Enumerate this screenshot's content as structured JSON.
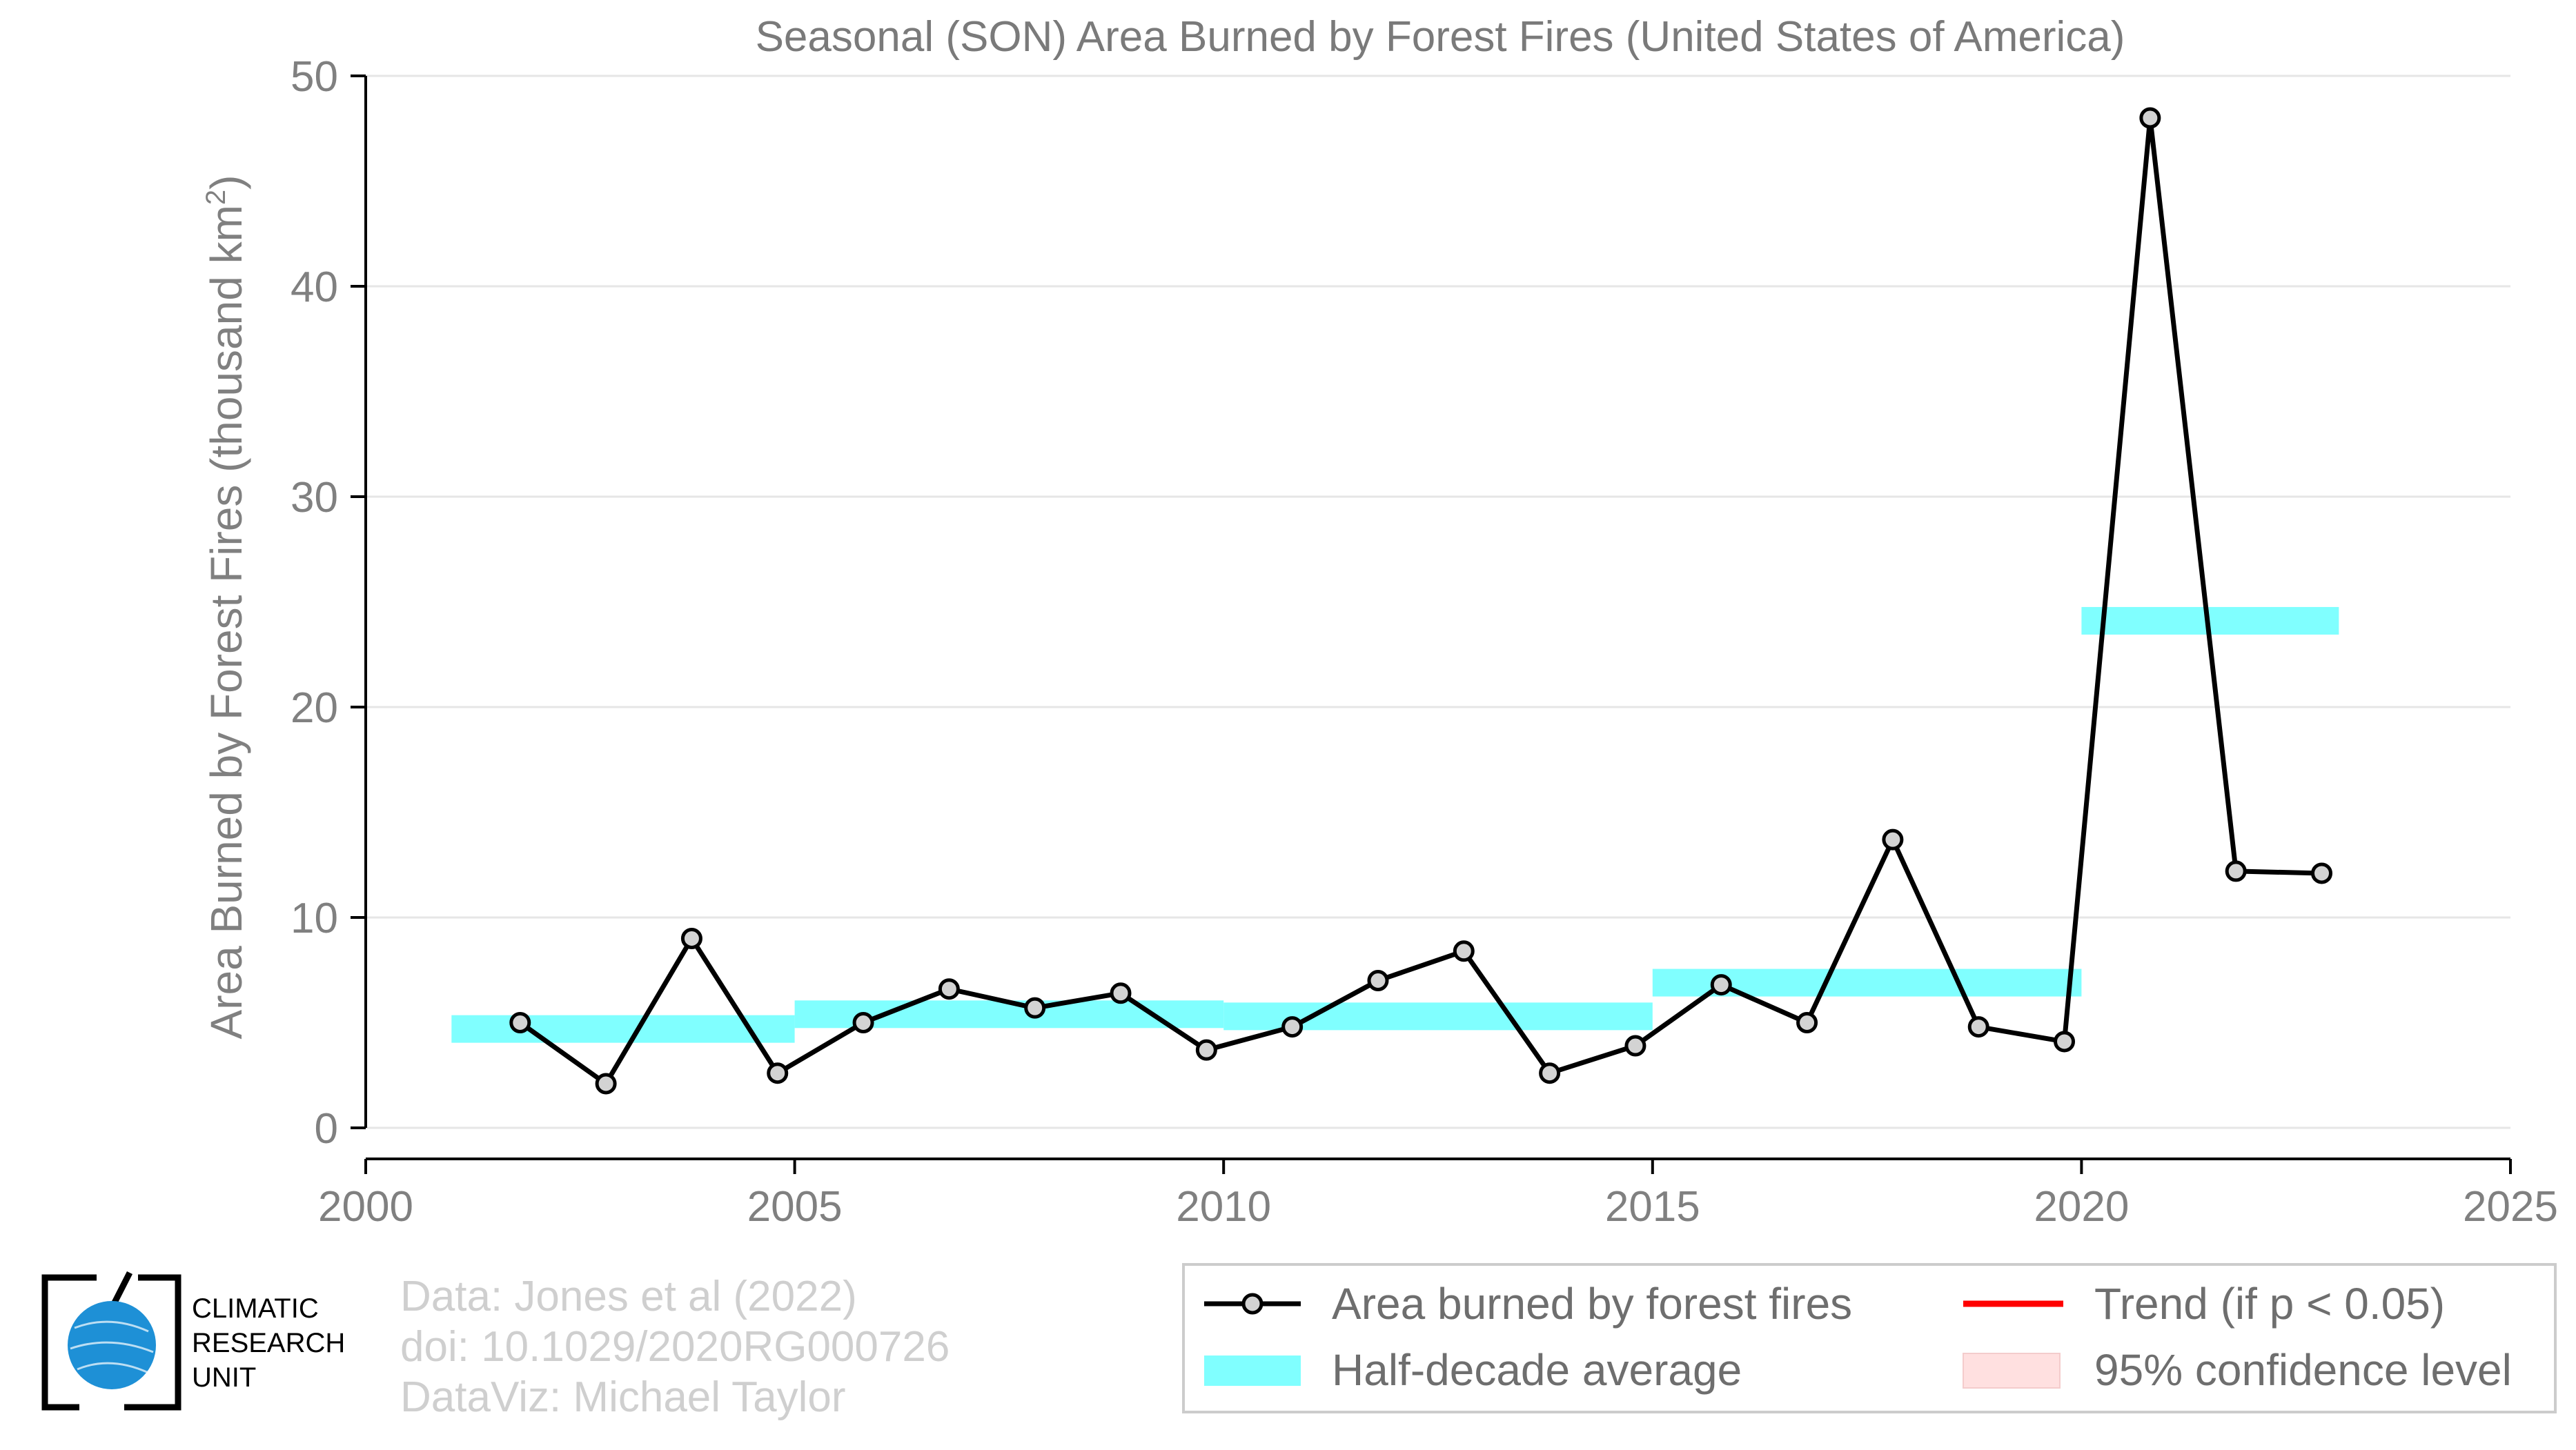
{
  "chart_data": {
    "type": "line",
    "title": "Seasonal (SON) Area Burned by Forest Fires (United States of America)",
    "ylabel": "Area Burned by Forest Fires (thousand km",
    "ylabel_superscript": "2",
    "ylabel_close": ")",
    "xlabel": "",
    "xlim": [
      2000,
      2025
    ],
    "ylim": [
      0,
      50
    ],
    "xticks": [
      2000,
      2005,
      2010,
      2015,
      2020,
      2025
    ],
    "yticks": [
      0,
      10,
      20,
      30,
      40,
      50
    ],
    "grid": "horizontal",
    "series": [
      {
        "name": "Area burned by forest fires",
        "color": "#000000",
        "marker_fill": "#d3d3d3",
        "x": [
          2001.8,
          2002.8,
          2003.8,
          2004.8,
          2005.8,
          2006.8,
          2007.8,
          2008.8,
          2009.8,
          2010.8,
          2011.8,
          2012.8,
          2013.8,
          2014.8,
          2015.8,
          2016.8,
          2017.8,
          2018.8,
          2019.8,
          2020.8,
          2021.8,
          2022.8
        ],
        "values": [
          5.0,
          2.1,
          9.0,
          2.6,
          5.0,
          6.6,
          5.7,
          6.4,
          3.7,
          4.8,
          7.0,
          8.4,
          2.6,
          3.9,
          6.8,
          5.0,
          13.7,
          4.8,
          4.1,
          48.0,
          12.2,
          12.1
        ]
      }
    ],
    "half_decade_average": {
      "name": "Half-decade average",
      "color": "#80ffff",
      "segments": [
        {
          "x_start": 2001,
          "x_end": 2005,
          "value": 4.7
        },
        {
          "x_start": 2005,
          "x_end": 2010,
          "value": 5.4
        },
        {
          "x_start": 2010,
          "x_end": 2015,
          "value": 5.3
        },
        {
          "x_start": 2015,
          "x_end": 2020,
          "value": 6.9
        },
        {
          "x_start": 2020,
          "x_end": 2023,
          "value": 24.1
        }
      ]
    },
    "legend": {
      "placement": "bottom-right",
      "entries": [
        {
          "label": "Area burned by forest fires",
          "kind": "line-marker",
          "color": "#000000"
        },
        {
          "label": "Trend (if p < 0.05)",
          "kind": "line",
          "color": "#ff0000"
        },
        {
          "label": "Half-decade average",
          "kind": "band",
          "color": "#80ffff"
        },
        {
          "label": "95% confidence level",
          "kind": "band",
          "color": "#ffe0e0"
        }
      ]
    }
  },
  "credits": {
    "line1": "Data: Jones et al (2022)",
    "line2": "doi: 10.1029/2020RG000726",
    "line3": "DataViz: Michael Taylor"
  },
  "logo": {
    "line1": "CLIMATIC",
    "line2": "RESEARCH",
    "line3": "UNIT",
    "globe_color": "#1e90d6"
  }
}
